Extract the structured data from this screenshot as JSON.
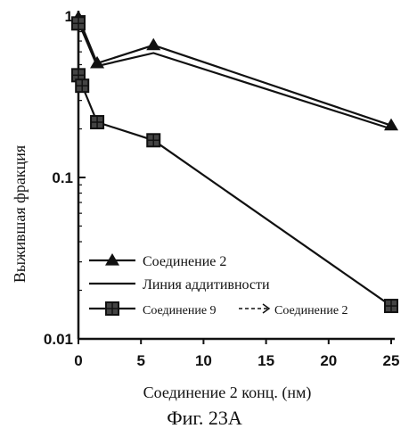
{
  "caption": "Фиг. 23А",
  "chart_data": {
    "type": "line",
    "title": "",
    "xlabel": "Соединение 2 конц. (нм)",
    "ylabel": "Выжившая фракция",
    "xlim": [
      0,
      25
    ],
    "ylim": [
      0.01,
      1
    ],
    "yscale": "log",
    "x_ticks": [
      0,
      5,
      10,
      15,
      20,
      25
    ],
    "y_ticks": [
      {
        "value": 1,
        "label": "1"
      },
      {
        "value": 0.1,
        "label": "0.1"
      },
      {
        "value": 0.01,
        "label": "0.01"
      }
    ],
    "grid": false,
    "legend_position": "bottom-left",
    "series": [
      {
        "name": "Соединение 2",
        "marker": "triangle",
        "color": "#111111",
        "points": [
          [
            0,
            0.98
          ],
          [
            1.5,
            0.51
          ],
          [
            6,
            0.66
          ],
          [
            25,
            0.21
          ]
        ]
      },
      {
        "name": "Линия аддитивности",
        "marker": "none",
        "color": "#111111",
        "points": [
          [
            0,
            0.92
          ],
          [
            1.5,
            0.49
          ],
          [
            6,
            0.59
          ],
          [
            25,
            0.2
          ]
        ]
      },
      {
        "name": "Соединение 9",
        "marker": "square",
        "color": "#111111",
        "points": [
          [
            0,
            0.9
          ],
          [
            0,
            0.43
          ],
          [
            0.3,
            0.37
          ],
          [
            1.5,
            0.22
          ],
          [
            6,
            0.17
          ],
          [
            25,
            0.016
          ]
        ]
      }
    ],
    "legend_arrow_suffix": "Соединение 2"
  }
}
